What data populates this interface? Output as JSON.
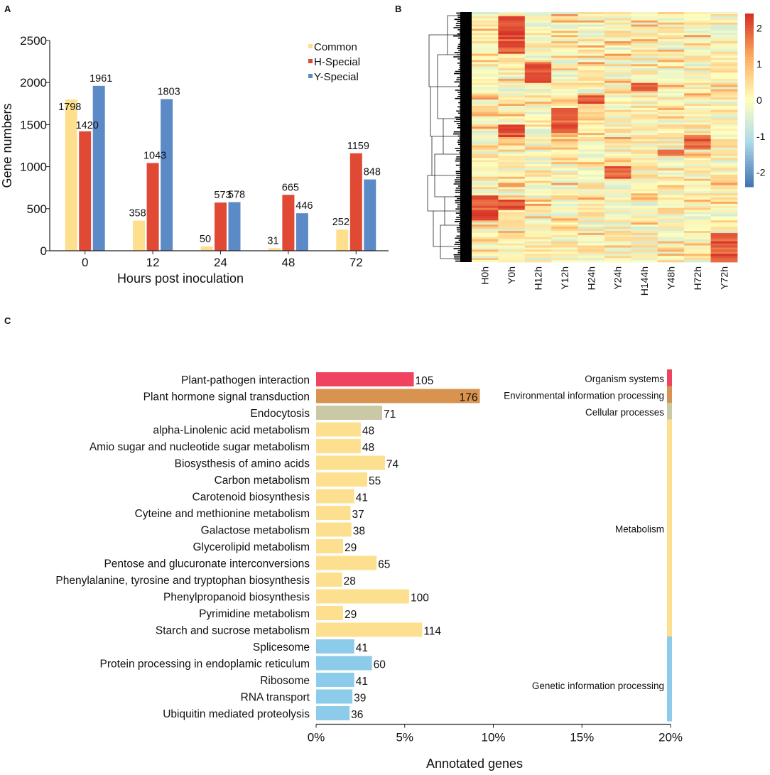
{
  "panels": {
    "a": "A",
    "b": "B",
    "c": "C"
  },
  "chart_data": [
    {
      "type": "bar",
      "id": "A",
      "xlabel": "Hours post inoculation",
      "ylabel": "Gene numbers",
      "ylim": [
        0,
        2500
      ],
      "yticks": [
        0,
        500,
        1000,
        1500,
        2000,
        2500
      ],
      "categories": [
        "0",
        "12",
        "24",
        "48",
        "72"
      ],
      "legend_position": "top-right",
      "series": [
        {
          "name": "Common",
          "color": "#fddf8e",
          "values": [
            1798,
            358,
            50,
            31,
            252
          ]
        },
        {
          "name": "H-Special",
          "color": "#e04a35",
          "values": [
            1420,
            1043,
            573,
            665,
            1159
          ]
        },
        {
          "name": "Y-Special",
          "color": "#5b8ac6",
          "values": [
            1961,
            1803,
            578,
            446,
            848
          ]
        }
      ]
    },
    {
      "type": "heatmap",
      "id": "B",
      "columns": [
        "H0h",
        "Y0h",
        "H12h",
        "Y12h",
        "H24h",
        "Y24h",
        "H144h",
        "Y48h",
        "H72h",
        "Y72h"
      ],
      "colorbar": {
        "min": -2.4,
        "max": 2.4,
        "ticks": [
          "2",
          "1",
          "0",
          "-1",
          "-2"
        ],
        "tick_values": [
          2,
          1,
          0,
          -1,
          -2
        ]
      },
      "colors": {
        "high": "#d73027",
        "mid": "#ffffbf",
        "low": "#4575b4"
      },
      "dendrogram": "row"
    },
    {
      "type": "bar",
      "id": "C",
      "orientation": "horizontal",
      "xlabel": "Annotated genes",
      "xlim": [
        0,
        20
      ],
      "xticks": [
        "0%",
        "5%",
        "10%",
        "15%",
        "20%"
      ],
      "xtick_values": [
        0,
        5,
        10,
        15,
        20
      ],
      "pct_per_gene": 0.0525,
      "categories": [
        "Plant-pathogen interaction",
        "Plant hormone signal transduction",
        "Endocytosis",
        "alpha-Linolenic acid metabolism",
        "Amio sugar and nucleotide sugar metabolism",
        "Biosysthesis of amino acids",
        "Carbon metabolism",
        "Carotenoid biosynthesis",
        "Cyteine and methionine metabolism",
        "Galactose metabolism",
        "Glycerolipid metabolism",
        "Pentose and glucuronate interconversions",
        "Phenylalanine, tyrosine and tryptophan biosynthesis",
        "Phenylpropanoid biosynthesis",
        "Pyrimidine metabolism",
        "Starch and sucrose metabolism",
        "Splicesome",
        "Protein processing in endoplamic reticulum",
        "Ribosome",
        "RNA transport",
        "Ubiquitin mediated proteolysis"
      ],
      "values": [
        105,
        176,
        71,
        48,
        48,
        74,
        55,
        41,
        37,
        38,
        29,
        65,
        28,
        100,
        29,
        114,
        41,
        60,
        41,
        39,
        36
      ],
      "group_index": [
        0,
        1,
        2,
        3,
        3,
        3,
        3,
        3,
        3,
        3,
        3,
        3,
        3,
        3,
        3,
        3,
        4,
        4,
        4,
        4,
        4
      ],
      "groups": [
        {
          "name": "Organism systems",
          "color": "#f0435f",
          "start": 0,
          "end": 0
        },
        {
          "name": "Environmental information processing",
          "color": "#d99350",
          "start": 1,
          "end": 1
        },
        {
          "name": "Cellular processes",
          "color": "#cbc8a6",
          "start": 2,
          "end": 2
        },
        {
          "name": "Metabolism",
          "color": "#fde08f",
          "start": 3,
          "end": 15
        },
        {
          "name": "Genetic information processing",
          "color": "#8ccbea",
          "start": 16,
          "end": 20
        }
      ]
    }
  ]
}
